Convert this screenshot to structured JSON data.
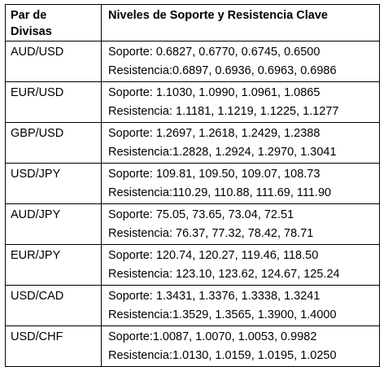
{
  "table": {
    "header": {
      "col1_line1": "Par de",
      "col1_line2": "Divisas",
      "col2": "Niveles de Soporte y Resistencia Clave"
    },
    "rows": [
      {
        "pair": "AUD/USD",
        "support": "Soporte: 0.6827, 0.6770, 0.6745, 0.6500",
        "resistance": "Resistencia:0.6897, 0.6936, 0.6963, 0.6986"
      },
      {
        "pair": "EUR/USD",
        "support": "Soporte: 1.1030, 1.0990, 1.0961, 1.0865",
        "resistance": "Resistencia: 1.1181, 1.1219, 1.1225, 1.1277"
      },
      {
        "pair": "GBP/USD",
        "support": "Soporte: 1.2697, 1.2618, 1.2429, 1.2388",
        "resistance": "Resistencia:1.2828, 1.2924, 1.2970, 1.3041"
      },
      {
        "pair": "USD/JPY",
        "support": "Soporte: 109.81, 109.50, 109.07, 108.73",
        "resistance": "Resistencia:110.29, 110.88, 111.69, 111.90"
      },
      {
        "pair": "AUD/JPY",
        "support": "Soporte: 75.05, 73.65, 73.04, 72.51",
        "resistance": "Resistencia: 76.37, 77.32, 78.42, 78.71"
      },
      {
        "pair": "EUR/JPY",
        "support": "Soporte: 120.74, 120.27, 119.46, 118.50",
        "resistance": "Resistencia: 123.10, 123.62, 124.67, 125.24"
      },
      {
        "pair": "USD/CAD",
        "support": "Soporte: 1.3431, 1.3376, 1.3338, 1.3241",
        "resistance": "Resistencia:1.3529, 1.3565, 1.3900, 1.4000"
      },
      {
        "pair": "USD/CHF",
        "support": "Soporte:1.0087, 1.0070, 1.0053, 0.9982",
        "resistance": "Resistencia:1.0130, 1.0159, 1.0195, 1.0250"
      }
    ]
  }
}
